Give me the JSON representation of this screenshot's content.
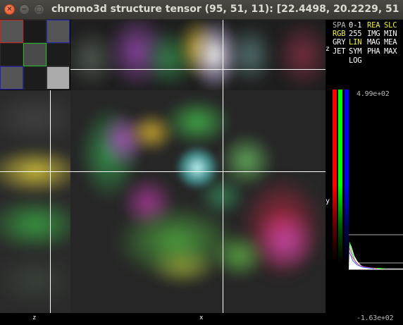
{
  "window": {
    "title": "chromo3d structure tensor (95, 51, 11): [22.4498, 20.2229, 51.3495, 0.0000]",
    "close_glyph": "✕",
    "minimize_glyph": "−",
    "maximize_glyph": "□"
  },
  "panel": {
    "options": {
      "spa": "SPA",
      "range01": "0-1",
      "rea": "REA",
      "slc": "SLC",
      "rgb": "RGB",
      "range255": "255",
      "img": "IMG",
      "min": "MIN",
      "gry": "GRY",
      "lin": "LIN",
      "mag": "MAG",
      "mea": "MEA",
      "jet": "JET",
      "sym": "SYM",
      "pha": "PHA",
      "max": "MAX",
      "log": "LOG"
    },
    "z_label": "z",
    "y_label": "y",
    "histogram_max": "4.99e+02",
    "histogram_min": "-1.63e+02",
    "colors": {
      "red": "#ff0000",
      "green": "#00ff00",
      "blue": "#0000ff"
    }
  },
  "views": {
    "yz_axis_label": "z",
    "xy_axis_label": "x"
  },
  "thumbnails": {
    "border_colors": [
      "#cc2222",
      "#2b2b2b",
      "#2323bb",
      "#2b2b2b",
      "#22bb22",
      "#2b2b2b",
      "#2323bb",
      "#2b2b2b",
      "#2b2b2b"
    ]
  }
}
